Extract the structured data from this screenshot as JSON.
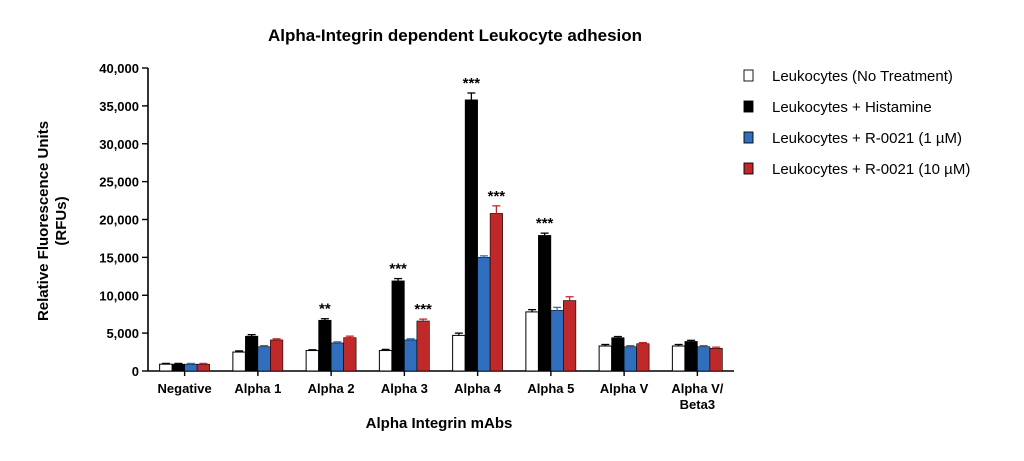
{
  "chart_data": {
    "type": "bar",
    "title": "Alpha-Integrin dependent Leukocyte adhesion",
    "xlabel": "Alpha Integrin mAbs",
    "ylabel_lines": [
      "Relative Fluorescence Units",
      "(RFUs)"
    ],
    "ylim": [
      0,
      40000
    ],
    "yticks": [
      0,
      5000,
      10000,
      15000,
      20000,
      25000,
      30000,
      35000,
      40000
    ],
    "ytick_labels": [
      "0",
      "5,000",
      "10,000",
      "15,000",
      "20,000",
      "25,000",
      "30,000",
      "35,000",
      "40,000"
    ],
    "categories": [
      [
        "Negative"
      ],
      [
        "Alpha 1"
      ],
      [
        "Alpha 2"
      ],
      [
        "Alpha 3"
      ],
      [
        "Alpha 4"
      ],
      [
        "Alpha 5"
      ],
      [
        "Alpha V"
      ],
      [
        "Alpha V/",
        "Beta3"
      ]
    ],
    "series": [
      {
        "name": "Leukocytes (No Treatment)",
        "color": "#ffffff",
        "values": [
          900,
          2500,
          2700,
          2700,
          4700,
          7800,
          3300,
          3300
        ],
        "errors": [
          100,
          150,
          100,
          150,
          300,
          300,
          200,
          200
        ]
      },
      {
        "name": "Leukocytes + Histamine",
        "color": "#000000",
        "values": [
          900,
          4600,
          6700,
          11900,
          35800,
          17900,
          4400,
          3900
        ],
        "errors": [
          100,
          200,
          200,
          300,
          900,
          300,
          150,
          150
        ]
      },
      {
        "name": "Leukocytes + R-0021 (1 µM)",
        "color": "#2f6fbd",
        "values": [
          900,
          3200,
          3700,
          4100,
          15000,
          8000,
          3200,
          3200
        ],
        "errors": [
          100,
          150,
          150,
          150,
          200,
          400,
          150,
          150
        ]
      },
      {
        "name": "Leukocytes + R-0021 (10 µM)",
        "color": "#c0292a",
        "values": [
          900,
          4100,
          4400,
          6600,
          20800,
          9300,
          3600,
          3000
        ],
        "errors": [
          100,
          150,
          200,
          250,
          1000,
          500,
          150,
          150
        ]
      }
    ],
    "significance": [
      {
        "category": 2,
        "series": 1,
        "label": "**"
      },
      {
        "category": 3,
        "series": 1,
        "label": "***"
      },
      {
        "category": 3,
        "series": 3,
        "label": "***"
      },
      {
        "category": 4,
        "series": 1,
        "label": "***"
      },
      {
        "category": 4,
        "series": 3,
        "label": "***"
      },
      {
        "category": 5,
        "series": 1,
        "label": "***"
      }
    ],
    "legend_position": "top-right",
    "grid": false
  }
}
